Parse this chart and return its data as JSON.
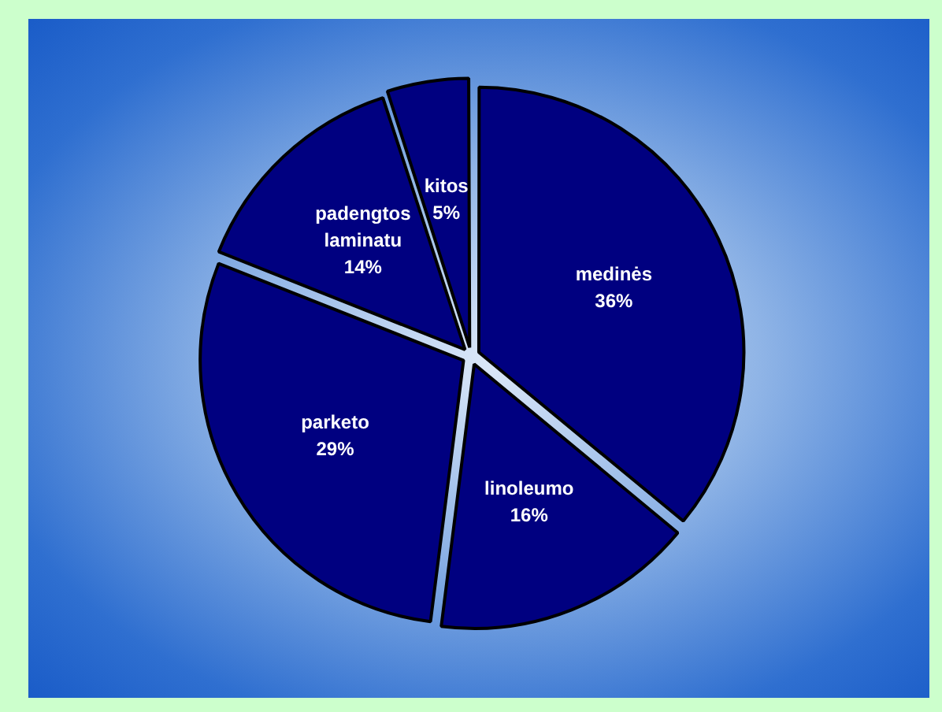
{
  "chart_data": {
    "type": "pie",
    "categories": [
      "medinės",
      "linoleumo",
      "parketo",
      "padengtos laminatu",
      "kitos"
    ],
    "values": [
      36,
      16,
      29,
      14,
      5
    ],
    "colors": [
      "#000080",
      "#000080",
      "#000080",
      "#000080",
      "#000080"
    ],
    "value_labels": [
      "36%",
      "16%",
      "29%",
      "14%",
      "5%"
    ],
    "legend": false
  }
}
